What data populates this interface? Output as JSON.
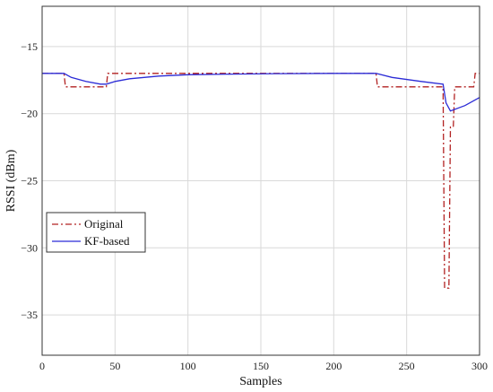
{
  "chart_data": {
    "type": "line",
    "xlabel": "Samples",
    "ylabel": "RSSI (dBm)",
    "xlim": [
      0,
      300
    ],
    "ylim": [
      -38,
      -12
    ],
    "xticks": [
      0,
      50,
      100,
      150,
      200,
      250,
      300
    ],
    "yticks": [
      -15,
      -20,
      -25,
      -30,
      -35
    ],
    "xtick_labels": [
      "0",
      "50",
      "100",
      "150",
      "200",
      "250",
      "300"
    ],
    "ytick_labels": [
      "−15",
      "−20",
      "−25",
      "−30",
      "−35"
    ],
    "grid": true,
    "legend_position": "left",
    "series": [
      {
        "name": "Original",
        "color": "#b22222",
        "style": "dash-dot",
        "x": [
          0,
          15,
          16,
          44,
          45,
          229,
          230,
          275,
          276,
          279,
          280,
          282,
          283,
          287,
          288,
          296,
          297,
          300
        ],
        "y": [
          -17,
          -17,
          -18,
          -18,
          -17,
          -17,
          -18,
          -18,
          -33,
          -33,
          -21,
          -21,
          -18,
          -18,
          -18,
          -18,
          -17,
          -17
        ]
      },
      {
        "name": "KF-based",
        "color": "#2b2bd6",
        "style": "solid",
        "x": [
          0,
          15,
          20,
          30,
          40,
          44,
          50,
          60,
          80,
          100,
          130,
          160,
          200,
          229,
          240,
          260,
          275,
          277,
          280,
          285,
          290,
          300
        ],
        "y": [
          -17,
          -17,
          -17.3,
          -17.6,
          -17.8,
          -17.8,
          -17.6,
          -17.4,
          -17.2,
          -17.1,
          -17.05,
          -17.02,
          -17,
          -17,
          -17.3,
          -17.6,
          -17.8,
          -19.2,
          -19.8,
          -19.6,
          -19.4,
          -18.8
        ]
      }
    ]
  }
}
